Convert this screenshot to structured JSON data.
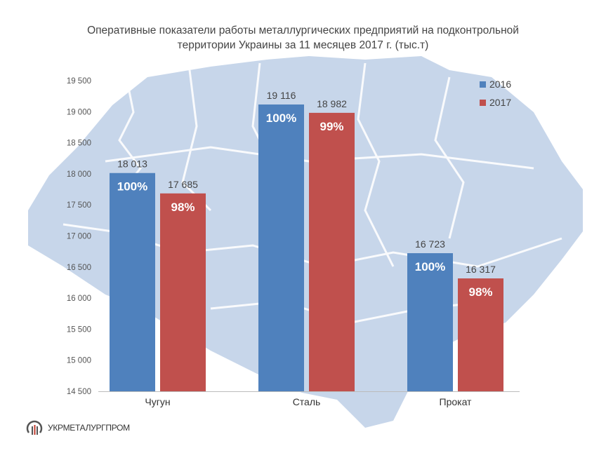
{
  "chart_data": {
    "type": "bar",
    "title_line1": "Оперативные показатели работы металлургических предприятий на подконтрольной",
    "title_line2": "территории Украины за 11 месяцев 2017 г. (тыс.т)",
    "categories": [
      "Чугун",
      "Сталь",
      "Прокат"
    ],
    "series": [
      {
        "name": "2016",
        "color": "#4F81BD",
        "values": [
          18013,
          19116,
          16723
        ],
        "value_labels": [
          "18 013",
          "19 116",
          "16 723"
        ],
        "percent_labels": [
          "100%",
          "100%",
          "100%"
        ]
      },
      {
        "name": "2017",
        "color": "#C0504D",
        "values": [
          17685,
          18982,
          16317
        ],
        "value_labels": [
          "17 685",
          "18 982",
          "16 317"
        ],
        "percent_labels": [
          "98%",
          "99%",
          "98%"
        ]
      }
    ],
    "ylim": [
      14500,
      19500
    ],
    "yticks": [
      14500,
      15000,
      15500,
      16000,
      16500,
      17000,
      17500,
      18000,
      18500,
      19000,
      19500
    ],
    "ytick_labels": [
      "14 500",
      "15 000",
      "15 500",
      "16 000",
      "16 500",
      "17 000",
      "17 500",
      "18 000",
      "18 500",
      "19 000",
      "19 500"
    ],
    "legend_position": "top-right",
    "grid": false
  },
  "logo": {
    "text": "УКРМЕТАЛУРГПРОМ"
  }
}
